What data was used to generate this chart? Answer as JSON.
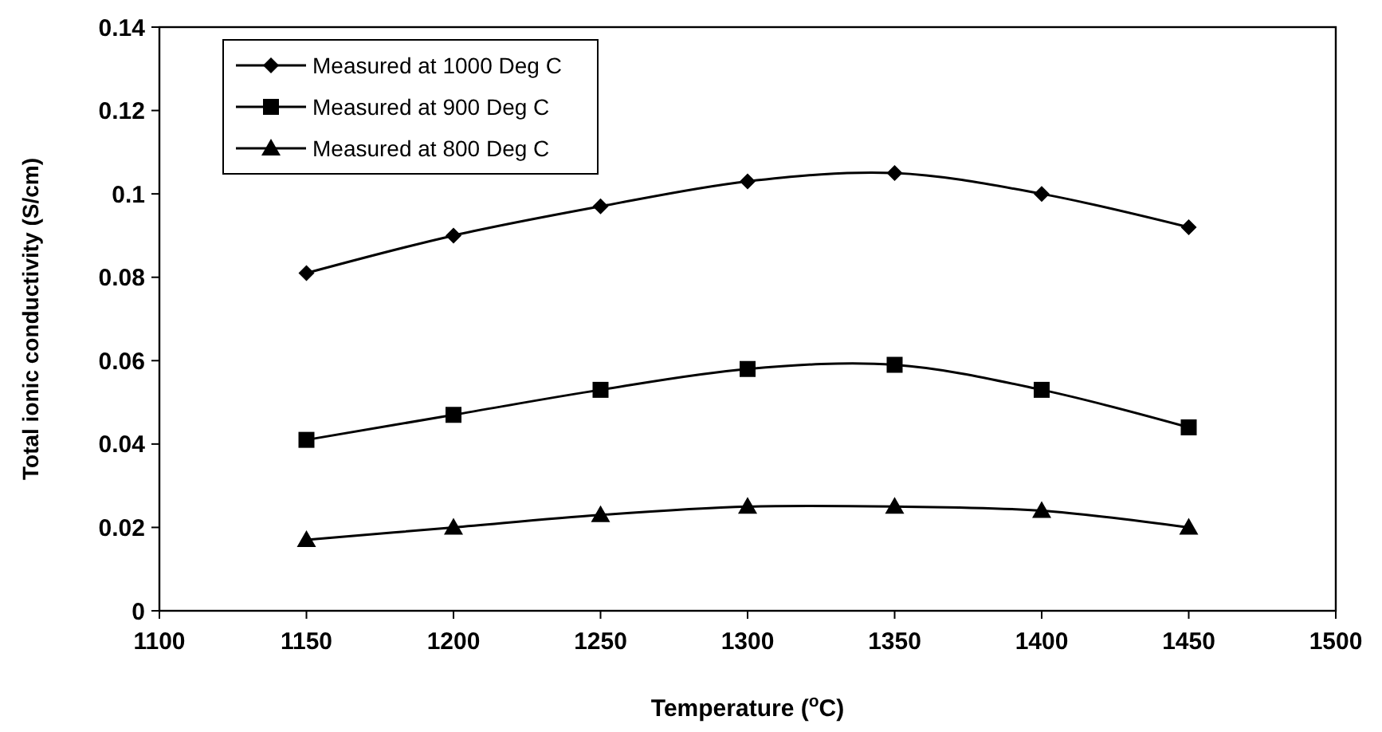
{
  "chart_data": {
    "type": "line",
    "xlabel": "Temperature ($^{o}$C)",
    "ylabel": "Total ionic conductivity (S/cm)",
    "x": [
      1150,
      1200,
      1250,
      1300,
      1350,
      1400,
      1450
    ],
    "xlim": [
      1100,
      1500
    ],
    "xticks": [
      1100,
      1150,
      1200,
      1250,
      1300,
      1350,
      1400,
      1450,
      1500
    ],
    "ylim": [
      0,
      0.14
    ],
    "yticks": [
      0,
      0.02,
      0.04,
      0.06,
      0.08,
      0.1,
      0.12,
      0.14
    ],
    "grid": false,
    "legend": "top left",
    "line_style": "solid",
    "series": [
      {
        "name": "Measured at 1000 Deg C",
        "color": "#000000",
        "marker": "diamond",
        "values": [
          0.081,
          0.09,
          0.097,
          0.103,
          0.105,
          0.1,
          0.092
        ]
      },
      {
        "name": "Measured at 900 Deg C",
        "color": "#000000",
        "marker": "square",
        "values": [
          0.041,
          0.047,
          0.053,
          0.058,
          0.059,
          0.053,
          0.044
        ]
      },
      {
        "name": "Measured at 800 Deg C",
        "color": "#000000",
        "marker": "triangle",
        "values": [
          0.017,
          0.02,
          0.023,
          0.025,
          0.025,
          0.024,
          0.02
        ]
      }
    ]
  }
}
